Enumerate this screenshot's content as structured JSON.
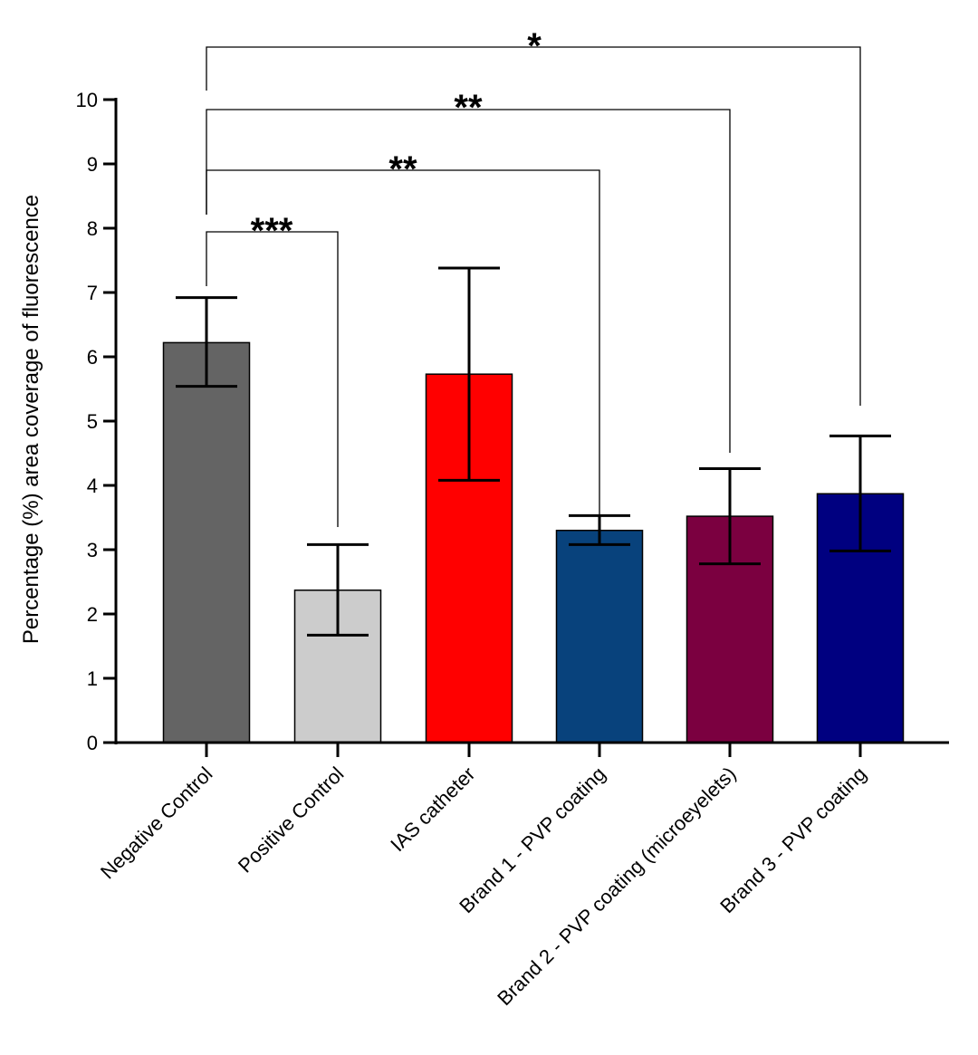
{
  "chart_data": {
    "type": "bar",
    "title": "",
    "xlabel": "",
    "ylabel": "Percentage (%)  area coverage of fluorescence",
    "ylim": [
      0,
      10
    ],
    "yticks": [
      0,
      1,
      2,
      3,
      4,
      5,
      6,
      7,
      8,
      9,
      10
    ],
    "grid": false,
    "legend": "none",
    "categories": [
      "Negative Control",
      "Positive Control",
      "IAS catheter",
      "Brand 1 - PVP coating",
      "Brand 2 - PVP coating (microeyelets)",
      "Brand 3 - PVP coating"
    ],
    "values": [
      6.22,
      2.37,
      5.73,
      3.3,
      3.52,
      3.87
    ],
    "error_low": [
      5.54,
      1.67,
      4.08,
      3.08,
      2.78,
      2.98
    ],
    "error_high": [
      6.92,
      3.08,
      7.38,
      3.53,
      4.26,
      4.77
    ],
    "colors": [
      "#646464",
      "#cccccc",
      "#ff0000",
      "#08427c",
      "#7b0040",
      "#000080"
    ],
    "significance": [
      {
        "from": 0,
        "to": 1,
        "label": "***"
      },
      {
        "from": 0,
        "to": 3,
        "label": "**"
      },
      {
        "from": 0,
        "to": 4,
        "label": "**"
      },
      {
        "from": 0,
        "to": 5,
        "label": "*"
      }
    ]
  }
}
